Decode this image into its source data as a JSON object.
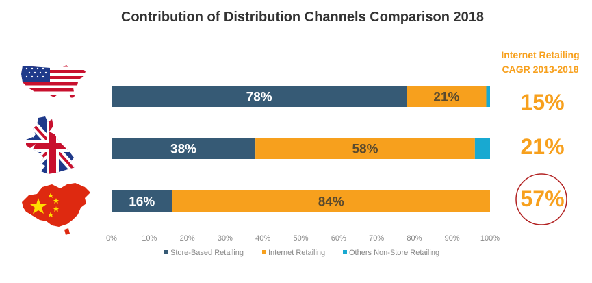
{
  "title": "Contribution of Distribution Channels Comparison 2018",
  "colors": {
    "store_based": "#365a75",
    "internet": "#f7a01d",
    "others": "#18a9d1",
    "accent": "#f7a01d",
    "circle": "#b22222",
    "axis_text": "#888888",
    "title_text": "#333333"
  },
  "cagr": {
    "header_line1": "Internet Retailing",
    "header_line2": "CAGR 2013-2018",
    "values": [
      "15%",
      "21%",
      "57%"
    ],
    "highlighted": "57%"
  },
  "flags": {
    "us": "usa-map-flag-icon",
    "uk": "uk-map-flag-icon",
    "cn": "china-map-flag-icon"
  },
  "chart_data": {
    "type": "bar",
    "orientation": "horizontal",
    "stacked": true,
    "title": "Contribution of Distribution Channels Comparison 2018",
    "categories": [
      "USA",
      "UK",
      "China"
    ],
    "series": [
      {
        "name": "Store-Based Retailing",
        "values": [
          78,
          38,
          16
        ],
        "labels": [
          "78%",
          "38%",
          "16%"
        ]
      },
      {
        "name": "Internet Retailing",
        "values": [
          21,
          58,
          84
        ],
        "labels": [
          "21%",
          "58%",
          "84%"
        ]
      },
      {
        "name": "Others Non-Store Retailing",
        "values": [
          1,
          4,
          0
        ],
        "labels": [
          "",
          "",
          ""
        ]
      }
    ],
    "xlim": [
      0,
      100
    ],
    "xticks": [
      "0%",
      "10%",
      "20%",
      "30%",
      "40%",
      "50%",
      "60%",
      "70%",
      "80%",
      "90%",
      "100%"
    ],
    "legend": [
      "Store-Based Retailing",
      "Internet Retailing",
      "Others Non-Store Retailing"
    ],
    "legend_position": "bottom",
    "grid": false
  }
}
